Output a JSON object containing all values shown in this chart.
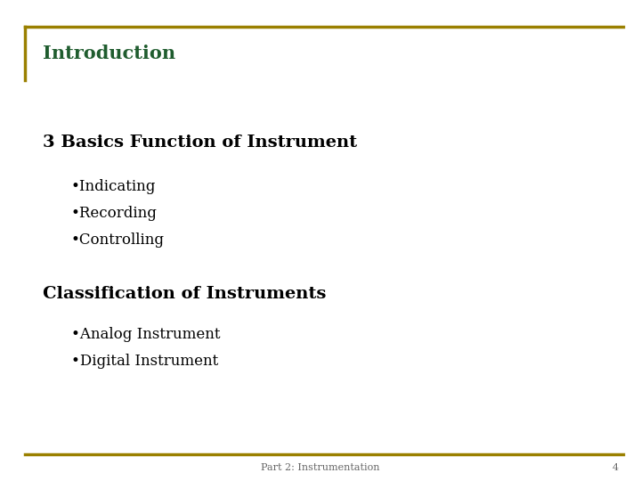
{
  "title": "Introduction",
  "title_color": "#1F5C2E",
  "background_color": "#FFFFFF",
  "border_color": "#9A8000",
  "section1_heading": "3 Basics Function of Instrument",
  "section1_bullets": [
    "•Indicating",
    "•Recording",
    "•Controlling"
  ],
  "section2_heading": "Classification of Instruments",
  "section2_bullets": [
    "•Analog Instrument",
    "•Digital Instrument"
  ],
  "footer_text": "Part 2: Instrumentation",
  "footer_number": "4",
  "heading_color": "#000000",
  "bullet_color": "#000000",
  "footer_color": "#666666",
  "title_fontsize": 15,
  "heading_fontsize": 14,
  "bullet_fontsize": 12,
  "footer_fontsize": 8
}
